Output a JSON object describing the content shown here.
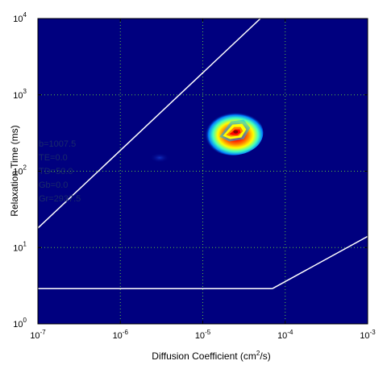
{
  "chart_data": {
    "type": "heatmap",
    "xlabel": "Diffusion Coefficient (cm",
    "xlabel_sup": "2",
    "xlabel_tail": "/s)",
    "ylabel": "Relaxation Time (ms)",
    "x_scale": "log",
    "y_scale": "log",
    "xlim": [
      1e-07,
      0.001
    ],
    "ylim": [
      1,
      10000
    ],
    "x_ticks": [
      {
        "value": 1e-07,
        "base": "10",
        "exp": "-7"
      },
      {
        "value": 1e-06,
        "base": "10",
        "exp": "-6"
      },
      {
        "value": 1e-05,
        "base": "10",
        "exp": "-5"
      },
      {
        "value": 0.0001,
        "base": "10",
        "exp": "-4"
      },
      {
        "value": 0.001,
        "base": "10",
        "exp": "-3"
      }
    ],
    "y_ticks": [
      {
        "value": 1,
        "base": "10",
        "exp": "0"
      },
      {
        "value": 10,
        "base": "10",
        "exp": "1"
      },
      {
        "value": 100,
        "base": "10",
        "exp": "2"
      },
      {
        "value": 1000,
        "base": "10",
        "exp": "3"
      },
      {
        "value": 10000,
        "base": "10",
        "exp": "4"
      }
    ],
    "grid": true,
    "background_color": "#00007f",
    "grid_color": "#5fbf3f",
    "colormap": "jet",
    "peaks": [
      {
        "x": 2.4e-05,
        "y": 320,
        "peak_intensity": 1.0
      },
      {
        "x": 3e-06,
        "y": 150,
        "peak_intensity": 0.12
      }
    ],
    "lines": [
      {
        "name": "diagonal-line",
        "color": "#ffffff",
        "points": [
          [
            1e-07,
            18
          ],
          [
            5e-05,
            10000
          ]
        ]
      },
      {
        "name": "horizontal-line",
        "color": "#ffffff",
        "points": [
          [
            1e-07,
            2.9
          ],
          [
            7e-05,
            2.9
          ]
        ]
      },
      {
        "name": "rising-line",
        "color": "#ffffff",
        "points": [
          [
            7e-05,
            2.9
          ],
          [
            0.001,
            14
          ]
        ]
      }
    ],
    "annotations": [
      "b=1007.5",
      "TE=0.0",
      "TD=50.0",
      "Gb=0.0",
      "Gr=2937.5"
    ]
  }
}
